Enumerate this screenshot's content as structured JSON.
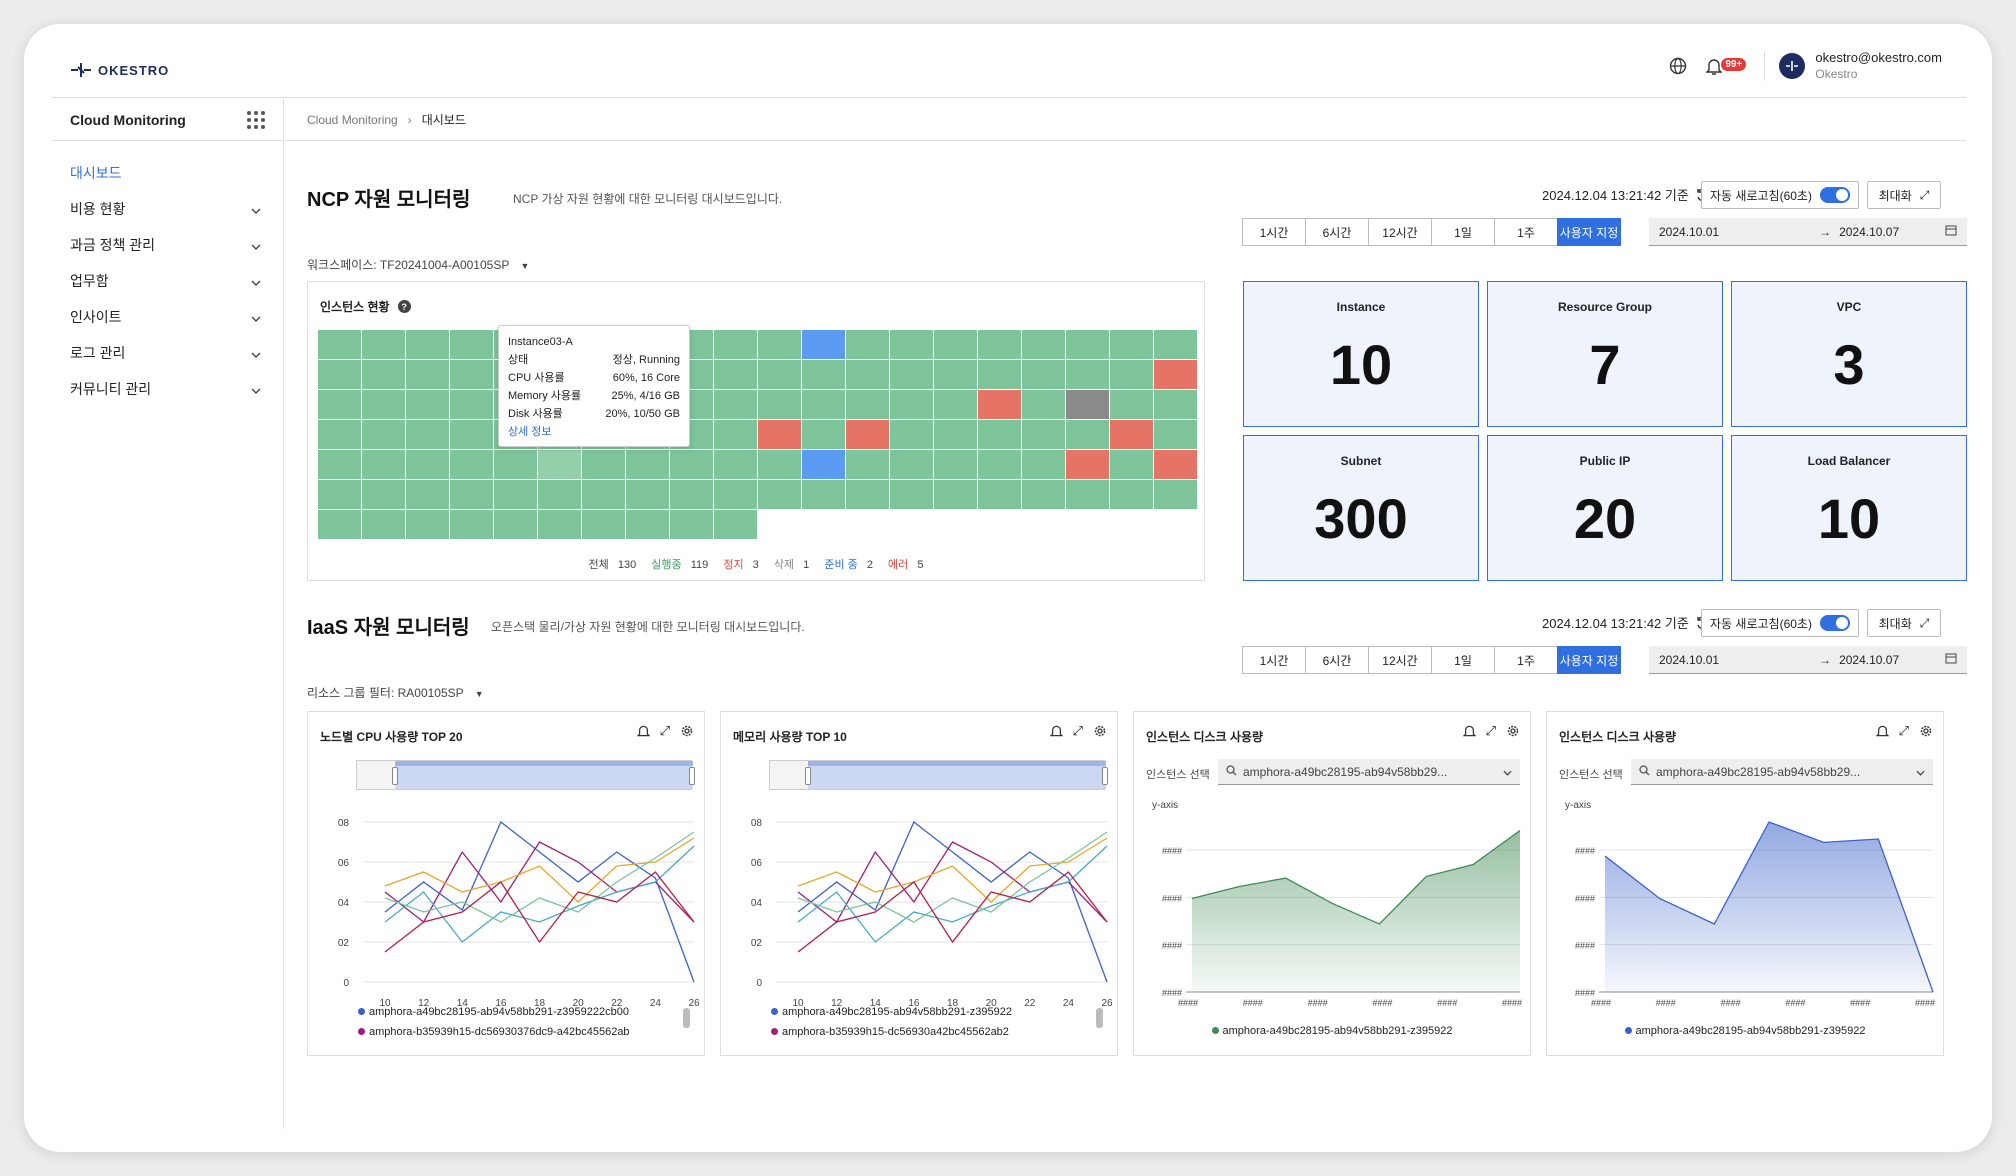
{
  "header": {
    "logo": "OKESTRO",
    "notif_count": "99+",
    "user_email": "okestro@okestro.com",
    "user_org": "Okestro"
  },
  "sidebar": {
    "app_title": "Cloud Monitoring",
    "items": [
      {
        "label": "대시보드",
        "active": true,
        "expandable": false
      },
      {
        "label": "비용 현황",
        "expandable": true
      },
      {
        "label": "과금 정책 관리",
        "expandable": true
      },
      {
        "label": "업무함",
        "expandable": true
      },
      {
        "label": "인사이트",
        "expandable": true
      },
      {
        "label": "로그 관리",
        "expandable": true
      },
      {
        "label": "커뮤니티 관리",
        "expandable": true
      }
    ]
  },
  "breadcrumb": [
    "Cloud Monitoring",
    "대시보드"
  ],
  "ncp": {
    "title": "NCP 자원 모니터링",
    "desc": "NCP 가상 자원 현황에 대한 모니터링 대시보드입니다.",
    "timestamp": "2024.12.04 13:21:42 기준",
    "auto_refresh": "자동 새로고침(60초)",
    "auto_refresh_on": true,
    "maximize": "최대화",
    "ranges": [
      "1시간",
      "6시간",
      "12시간",
      "1일",
      "1주",
      "사용자 지정"
    ],
    "selected_range": "사용자 지정",
    "date_from": "2024.10.01",
    "date_to": "2024.10.07",
    "workspace": "워크스페이스: TF20241004-A00105SP",
    "instance_panel": {
      "title": "인스턴스 현황",
      "tooltip": {
        "name": "Instance03-A",
        "rows": [
          {
            "k": "상태",
            "v": "정상, Running"
          },
          {
            "k": "CPU 사용률",
            "v": "60%, 16 Core"
          },
          {
            "k": "Memory 사용률",
            "v": "25%, 4/16 GB"
          },
          {
            "k": "Disk 사용률",
            "v": "20%, 10/50 GB"
          }
        ],
        "link": "상세 정보"
      },
      "legend": {
        "total_label": "전체",
        "total": "130",
        "running_label": "실행중",
        "running": "119",
        "stopped_label": "정지",
        "stopped": "3",
        "deleted_label": "삭제",
        "deleted": "1",
        "pending_label": "준비 중",
        "pending": "2",
        "error_label": "에러",
        "error": "5"
      }
    },
    "stats": [
      {
        "label": "Instance",
        "value": "10"
      },
      {
        "label": "Resource Group",
        "value": "7"
      },
      {
        "label": "VPC",
        "value": "3"
      },
      {
        "label": "Subnet",
        "value": "300"
      },
      {
        "label": "Public IP",
        "value": "20"
      },
      {
        "label": "Load Balancer",
        "value": "10"
      }
    ]
  },
  "iaas": {
    "title": "IaaS 자원 모니터링",
    "desc": "오픈스택 물리/가상 자원 현황에 대한 모니터링 대시보드입니다.",
    "timestamp": "2024.12.04 13:21:42 기준",
    "auto_refresh": "자동 새로고침(60초)",
    "maximize": "최대화",
    "ranges": [
      "1시간",
      "6시간",
      "12시간",
      "1일",
      "1주",
      "사용자 지정"
    ],
    "date_from": "2024.10.01",
    "date_to": "2024.10.07",
    "filter": "리소스 그룹 필터: RA00105SP",
    "charts": [
      {
        "title": "노드별 CPU 사용량 TOP 20",
        "legend": [
          "amphora-a49bc28195-ab94v58bb291-z3959222cb00",
          "amphora-b35939h15-dc56930376dc9-a42bc45562ab"
        ]
      },
      {
        "title": "메모리 사용량 TOP 10",
        "legend": [
          "amphora-a49bc28195-ab94v58bb291-z395922",
          "amphora-b35939h15-dc56930a42bc45562ab2"
        ]
      },
      {
        "title": "인스턴스 디스크 사용량",
        "select_label": "인스턴스 선택",
        "select_value": "amphora-a49bc28195-ab94v58bb29...",
        "ylabel": "y-axis",
        "legend": [
          "amphora-a49bc28195-ab94v58bb291-z395922"
        ]
      },
      {
        "title": "인스턴스 디스크 사용량",
        "select_label": "인스턴스 선택",
        "select_value": "amphora-a49bc28195-ab94v58bb29...",
        "ylabel": "y-axis",
        "legend": [
          "amphora-a49bc28195-ab94v58bb291-z395922"
        ]
      }
    ]
  },
  "chart_data": [
    {
      "type": "line",
      "title": "노드별 CPU 사용량 TOP 20",
      "x": [
        10,
        12,
        14,
        16,
        18,
        20,
        22,
        24,
        26
      ],
      "y_ticks": [
        "0",
        "02",
        "04",
        "06",
        "08"
      ],
      "series": [
        {
          "color": "#3a62c8",
          "values": [
            0.35,
            0.5,
            0.36,
            0.8,
            0.65,
            0.5,
            0.65,
            0.52,
            0.0
          ]
        },
        {
          "color": "#a01e78",
          "values": [
            0.45,
            0.3,
            0.65,
            0.4,
            0.7,
            0.6,
            0.45,
            0.5,
            0.3
          ]
        },
        {
          "color": "#e8a72a",
          "values": [
            0.48,
            0.55,
            0.45,
            0.5,
            0.58,
            0.4,
            0.58,
            0.6,
            0.72
          ]
        },
        {
          "color": "#49a9c9",
          "values": [
            0.3,
            0.45,
            0.2,
            0.35,
            0.3,
            0.38,
            0.45,
            0.5,
            0.68
          ]
        },
        {
          "color": "#7dc49b",
          "values": [
            0.42,
            0.35,
            0.4,
            0.3,
            0.42,
            0.35,
            0.5,
            0.62,
            0.75
          ]
        },
        {
          "color": "#b22046",
          "values": [
            0.15,
            0.3,
            0.35,
            0.5,
            0.2,
            0.45,
            0.4,
            0.55,
            0.3
          ]
        }
      ]
    },
    {
      "type": "line",
      "title": "메모리 사용량 TOP 10",
      "x": [
        10,
        12,
        14,
        16,
        18,
        20,
        22,
        24,
        26
      ],
      "y_ticks": [
        "0",
        "02",
        "04",
        "06",
        "08"
      ],
      "series": [
        {
          "color": "#3a62c8",
          "values": [
            0.35,
            0.5,
            0.36,
            0.8,
            0.65,
            0.5,
            0.65,
            0.52,
            0.0
          ]
        },
        {
          "color": "#a01e78",
          "values": [
            0.45,
            0.3,
            0.65,
            0.4,
            0.7,
            0.6,
            0.45,
            0.5,
            0.3
          ]
        },
        {
          "color": "#e8a72a",
          "values": [
            0.48,
            0.55,
            0.45,
            0.5,
            0.58,
            0.4,
            0.58,
            0.6,
            0.72
          ]
        },
        {
          "color": "#49a9c9",
          "values": [
            0.3,
            0.45,
            0.2,
            0.35,
            0.3,
            0.38,
            0.45,
            0.5,
            0.68
          ]
        },
        {
          "color": "#7dc49b",
          "values": [
            0.42,
            0.35,
            0.4,
            0.3,
            0.42,
            0.35,
            0.5,
            0.62,
            0.75
          ]
        },
        {
          "color": "#b22046",
          "values": [
            0.15,
            0.3,
            0.35,
            0.5,
            0.2,
            0.45,
            0.4,
            0.55,
            0.3
          ]
        }
      ]
    },
    {
      "type": "area",
      "title": "인스턴스 디스크 사용량",
      "x_ticks": [
        "####",
        "####",
        "####",
        "####",
        "####",
        "####"
      ],
      "y_ticks": [
        "####",
        "####",
        "####",
        "####"
      ],
      "color": "#3f8a55",
      "values": [
        0.55,
        0.62,
        0.67,
        0.52,
        0.4,
        0.68,
        0.75,
        0.95
      ]
    },
    {
      "type": "area",
      "title": "인스턴스 디스크 사용량",
      "x_ticks": [
        "####",
        "####",
        "####",
        "####",
        "####",
        "####"
      ],
      "y_ticks": [
        "####",
        "####",
        "####",
        "####"
      ],
      "color": "#3a62c8",
      "values": [
        0.8,
        0.55,
        0.4,
        1.0,
        0.88,
        0.9,
        0.0
      ]
    }
  ]
}
